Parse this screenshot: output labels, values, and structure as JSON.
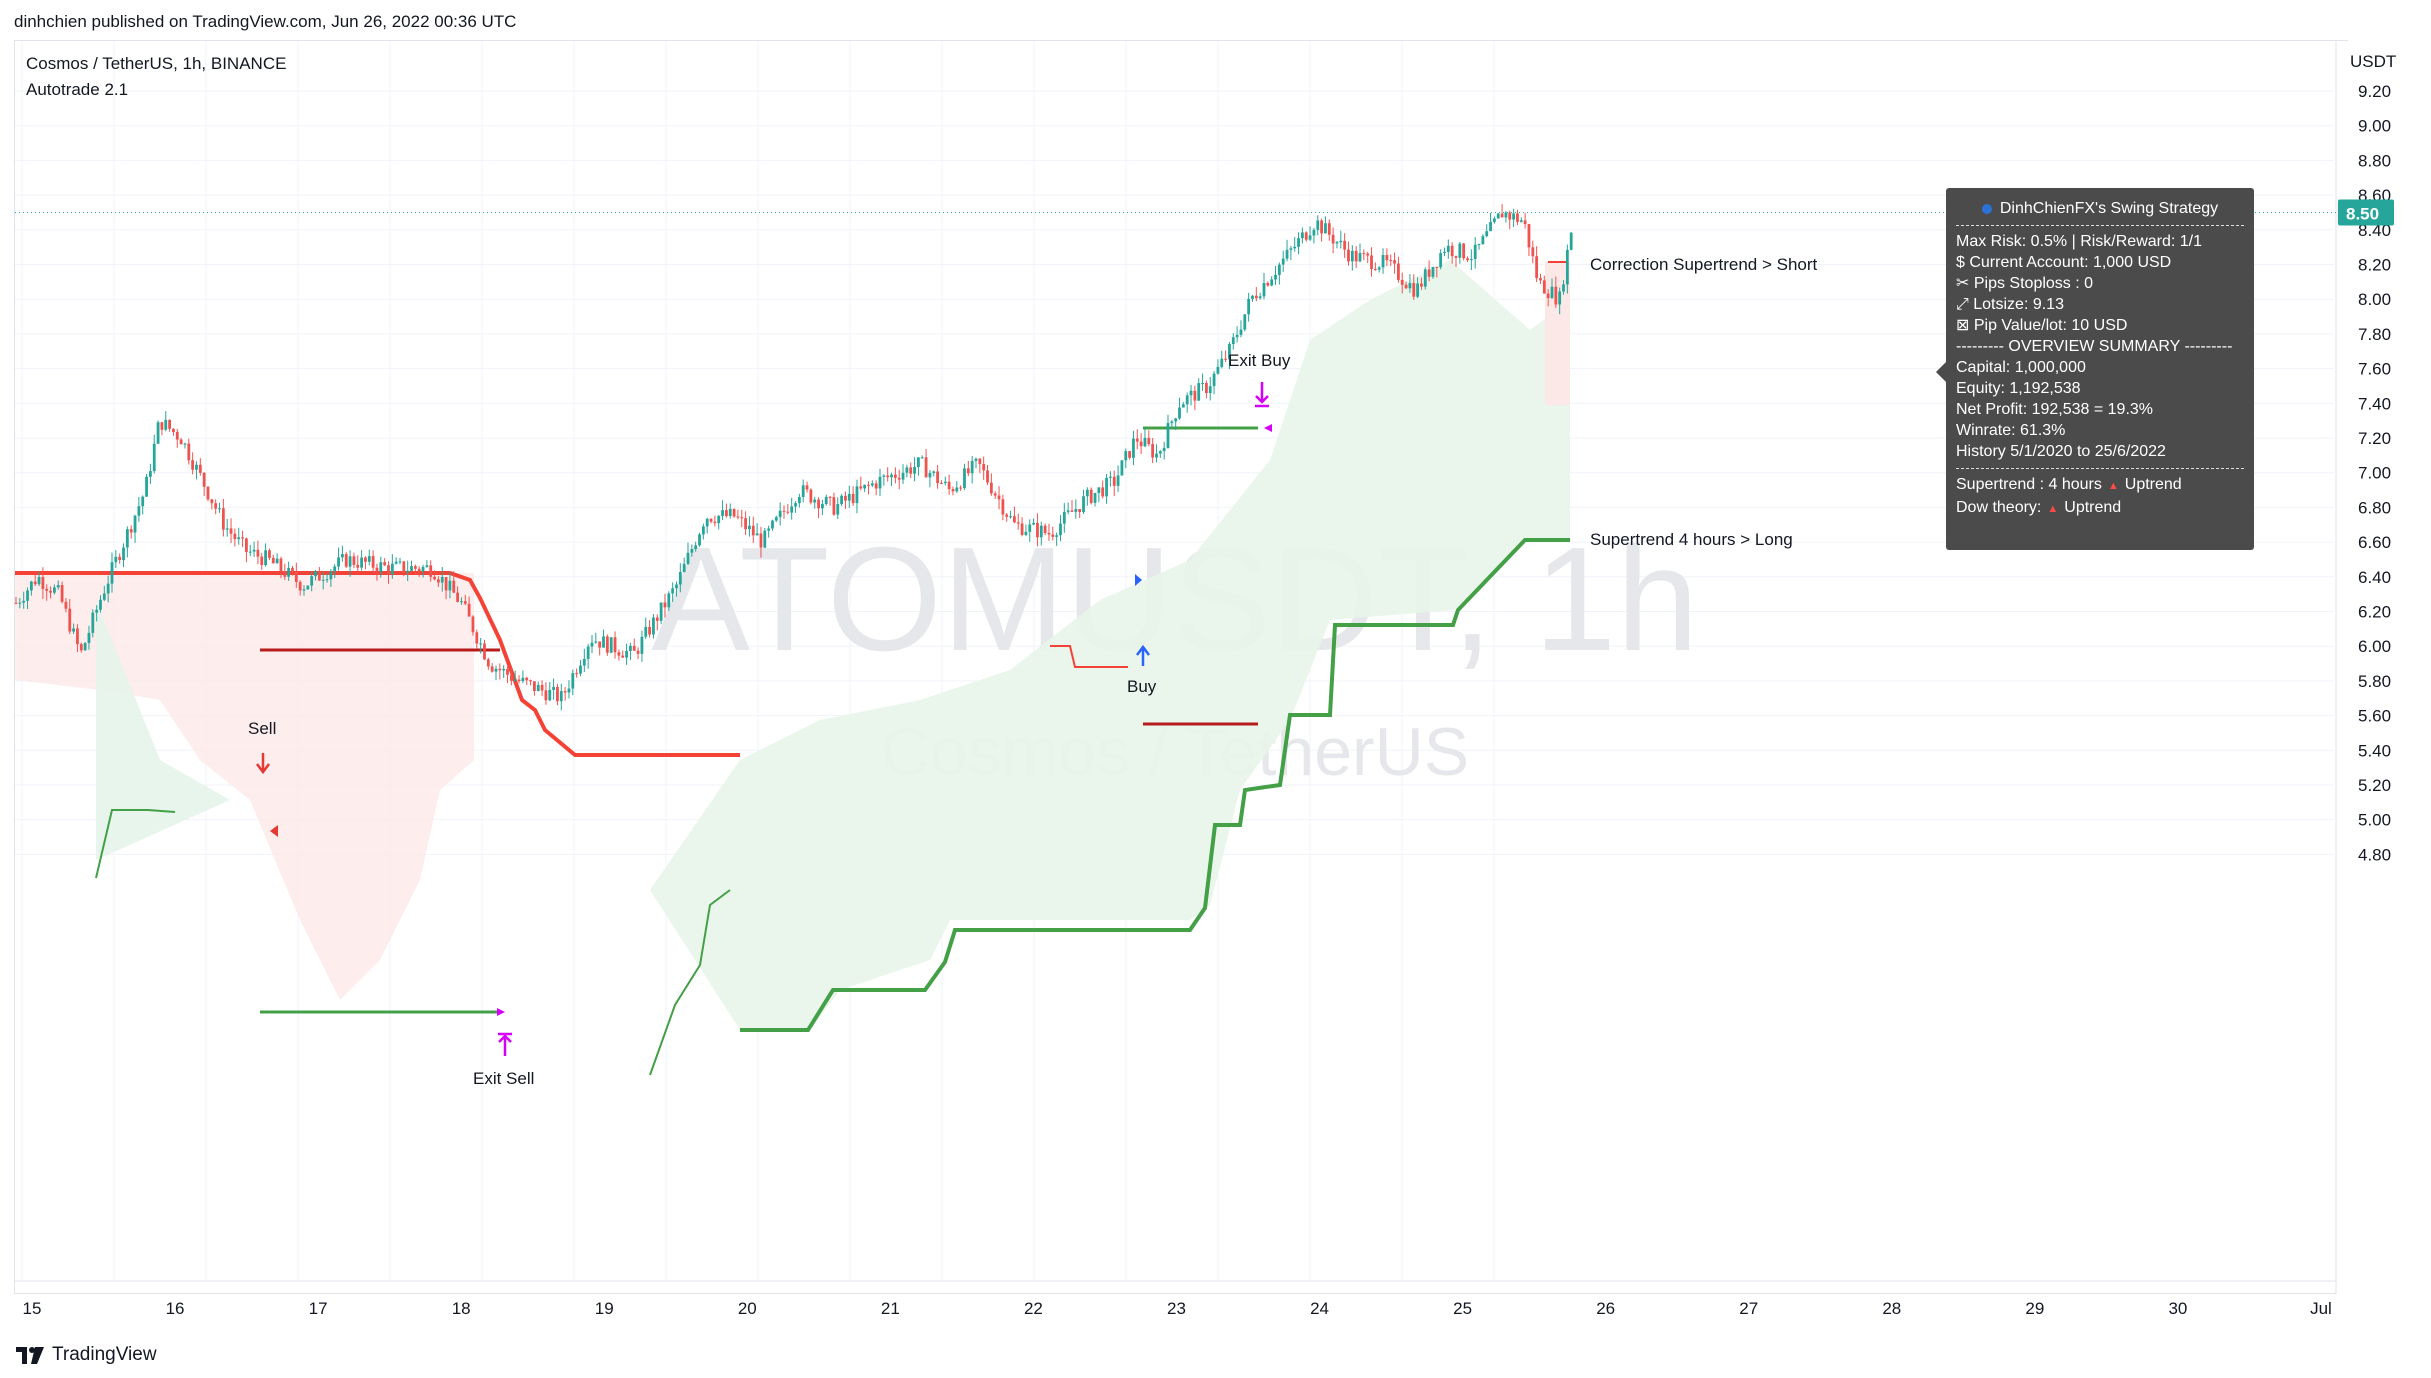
{
  "header": {
    "publisher": "dinhchien published on TradingView.com, Jun 26, 2022 00:36 UTC",
    "symbol": "Cosmos / TetherUS, 1h, BINANCE",
    "study": "Autotrade 2.1"
  },
  "watermark": {
    "ticker": "ATOMUSDT, 1h",
    "name": "Cosmos / TetherUS"
  },
  "price_axis": {
    "currency": "USDT",
    "labels": [
      "9.20",
      "9.00",
      "8.80",
      "8.60",
      "8.40",
      "8.20",
      "8.00",
      "7.80",
      "7.60",
      "7.40",
      "7.20",
      "7.00",
      "6.80",
      "6.60",
      "6.40",
      "6.20",
      "6.00",
      "5.80",
      "5.60",
      "5.40",
      "5.20",
      "5.00",
      "4.80"
    ],
    "current_price": "8.50",
    "current_price_color": "#26a69a"
  },
  "time_axis": {
    "labels": [
      "15",
      "16",
      "17",
      "18",
      "19",
      "20",
      "21",
      "22",
      "23",
      "24",
      "25",
      "26",
      "27",
      "28",
      "29",
      "30",
      "Jul"
    ]
  },
  "annotations": {
    "sell": "Sell",
    "exit_sell": "Exit Sell",
    "buy": "Buy",
    "exit_buy": "Exit Buy",
    "correction": "Correction Supertrend  > Short",
    "supertrend_long": "Supertrend 4 hours > Long"
  },
  "colors": {
    "bull": "#26a69a",
    "bear": "#ef5350",
    "supertrend_down": "#f44336",
    "supertrend_up": "#43a047",
    "panel_bg": "#4b4b4b"
  },
  "info_panel": {
    "title": "DinhChienFX's Swing Strategy",
    "rows": [
      "Max Risk: 0.5% | Risk/Reward: 1/1",
      "$ Current Account: 1,000 USD",
      "✂ Pips Stoploss : 0",
      "⤢ Lotsize: 9.13",
      "⊠ Pip Value/lot: 10 USD"
    ],
    "summary_header": "--------- OVERVIEW SUMMARY ---------",
    "summary_rows": [
      "Capital: 1,000,000",
      "Equity: 1,192,538",
      "Net Profit: 192,538 = 19.3%",
      "Winrate: 61.3%",
      "History 5/1/2020 to 25/6/2022"
    ],
    "supertrend_label": "Supertrend : 4 hours",
    "supertrend_value": "Uptrend",
    "dow_label": "Dow theory:",
    "dow_value": "Uptrend"
  },
  "footer": {
    "brand": "TradingView"
  }
}
